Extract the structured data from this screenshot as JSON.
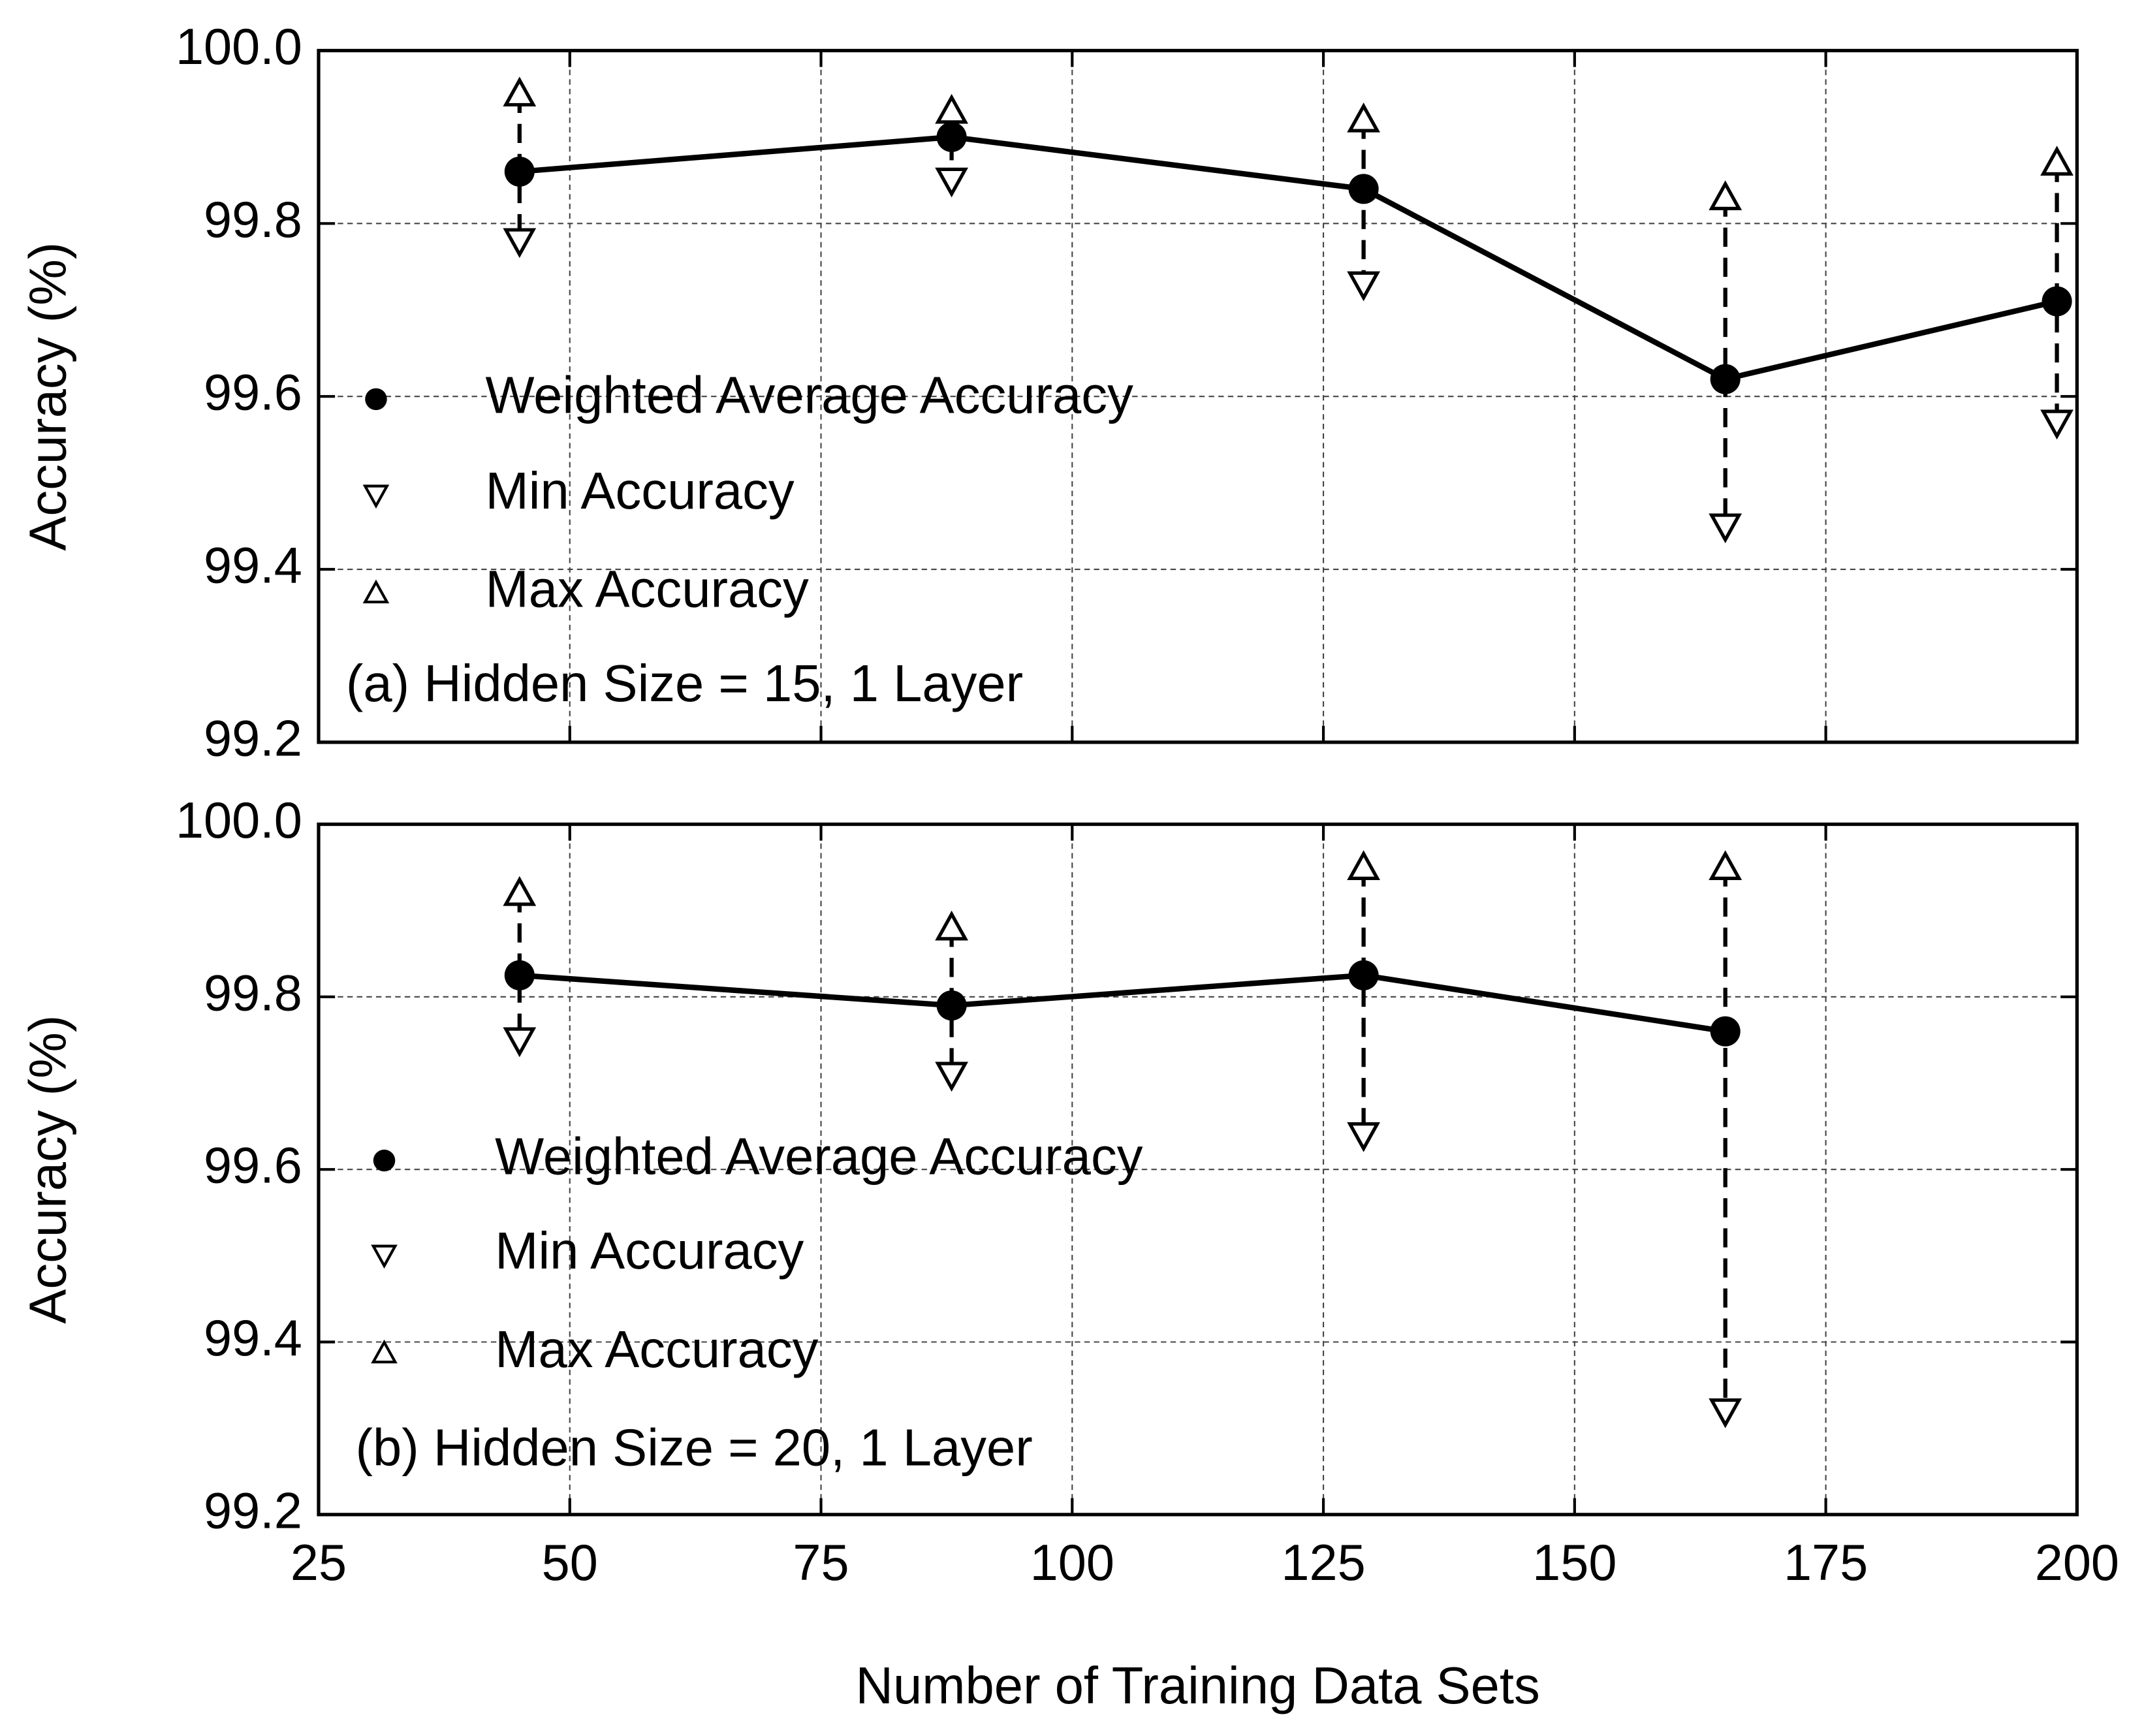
{
  "chart_data": [
    {
      "type": "line",
      "y_label": "Accuracy (%)",
      "annotation": "(a) Hidden Size = 15, 1 Layer",
      "x": [
        45,
        88,
        129,
        165,
        198
      ],
      "series": [
        {
          "name": "Weighted Average Accuracy",
          "color": "#000000",
          "values": [
            99.86,
            99.9,
            99.84,
            99.62,
            99.71
          ]
        },
        {
          "name": "Min Accuracy",
          "color": "#000000",
          "values": [
            99.78,
            99.85,
            99.73,
            99.45,
            99.57
          ]
        },
        {
          "name": "Max Accuracy",
          "color": "#000000",
          "values": [
            99.95,
            99.93,
            99.92,
            99.83,
            99.87
          ]
        }
      ],
      "xlim": [
        25,
        200
      ],
      "xticks": [
        25,
        50,
        75,
        100,
        125,
        150,
        175,
        200
      ],
      "ylim": [
        99.2,
        100
      ],
      "yticks": [
        99.2,
        99.4,
        99.6,
        99.8,
        {
          "value": 100,
          "label": "100.0"
        }
      ],
      "grid": true
    },
    {
      "type": "line",
      "y_label": "Accuracy (%)",
      "annotation": "(b) Hidden Size = 20, 1 Layer",
      "x_label": "Number of Training Data Sets",
      "x": [
        45,
        88,
        129,
        165
      ],
      "series": [
        {
          "name": "Weighted Average Accuracy",
          "color": "#000000",
          "values": [
            99.825,
            99.79,
            99.825,
            99.76
          ]
        },
        {
          "name": "Min Accuracy",
          "color": "#000000",
          "values": [
            99.75,
            99.71,
            99.64,
            99.32
          ]
        },
        {
          "name": "Max Accuracy",
          "color": "#000000",
          "values": [
            99.92,
            99.88,
            99.95,
            99.95
          ]
        }
      ],
      "xlim": [
        25,
        200
      ],
      "xticks": [
        25,
        50,
        75,
        100,
        125,
        150,
        175,
        200
      ],
      "ylim": [
        99.2,
        100
      ],
      "yticks": [
        99.2,
        99.4,
        99.6,
        99.8,
        {
          "value": 100,
          "label": "100.0"
        }
      ],
      "grid": true
    }
  ]
}
